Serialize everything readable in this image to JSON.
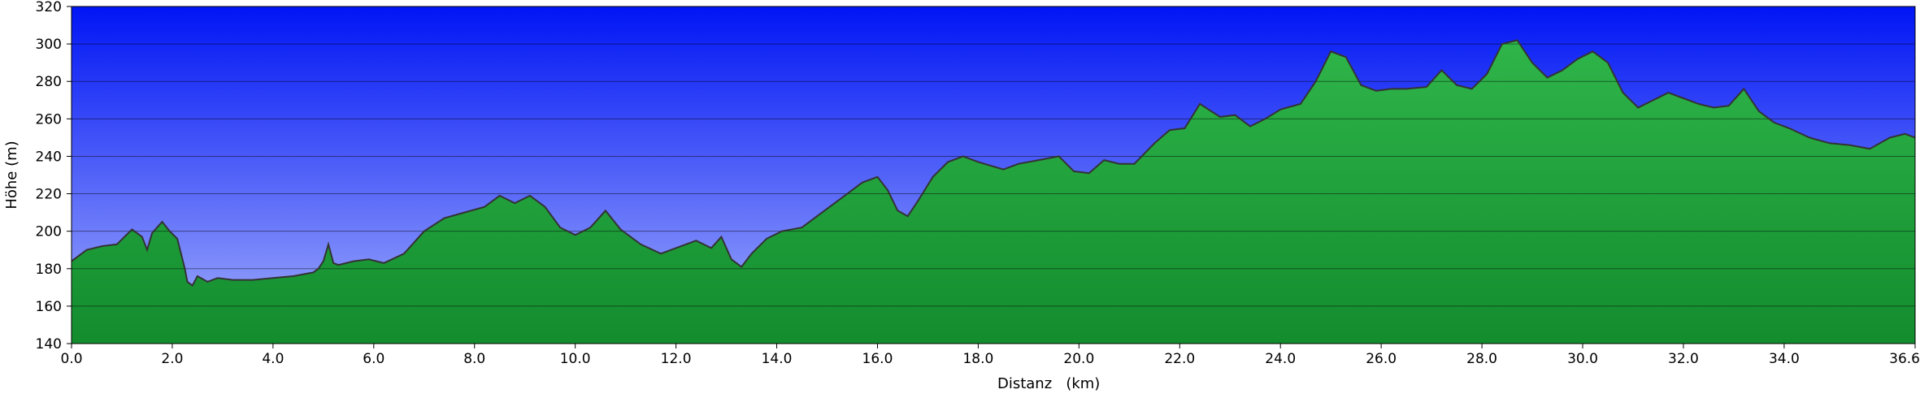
{
  "chart_data": {
    "type": "area",
    "xlabel": "Distanz   (km)",
    "ylabel": "Höhe (m)",
    "xlim": [
      0,
      36.6
    ],
    "ylim": [
      140,
      320
    ],
    "xticks": [
      0,
      2,
      4,
      6,
      8,
      10,
      12,
      14,
      16,
      18,
      20,
      22,
      24,
      26,
      28,
      30,
      32,
      34,
      36.6
    ],
    "xtick_labels": [
      "0.0",
      "2.0",
      "4.0",
      "6.0",
      "8.0",
      "10.0",
      "12.0",
      "14.0",
      "16.0",
      "18.0",
      "20.0",
      "22.0",
      "24.0",
      "26.0",
      "28.0",
      "30.0",
      "32.0",
      "34.0",
      "36.6"
    ],
    "yticks": [
      140,
      160,
      180,
      200,
      220,
      240,
      260,
      280,
      300,
      320
    ],
    "ytick_labels": [
      "140",
      "160",
      "180",
      "200",
      "220",
      "240",
      "260",
      "280",
      "300",
      "320"
    ],
    "grid": true,
    "colors": {
      "sky_top": "#0015f5",
      "sky_bottom": "#a4b0fc",
      "fill_top": "#2fb54a",
      "fill_bottom": "#138c2e",
      "line": "#333333",
      "grid": "#000000"
    },
    "series": [
      {
        "x": [
          0,
          0.3,
          0.6,
          0.9,
          1.2,
          1.4,
          1.5,
          1.6,
          1.8,
          1.95,
          2.1,
          2.25,
          2.3,
          2.4,
          2.5,
          2.7,
          2.9,
          3.2,
          3.6,
          4.0,
          4.4,
          4.8,
          4.9,
          5.0,
          5.1,
          5.2,
          5.3,
          5.6,
          5.9,
          6.2,
          6.6,
          7.0,
          7.4,
          7.8,
          8.2,
          8.5,
          8.8,
          9.1,
          9.4,
          9.7,
          10.0,
          10.3,
          10.6,
          10.9,
          11.3,
          11.7,
          12.1,
          12.4,
          12.7,
          12.9,
          13.1,
          13.3,
          13.5,
          13.8,
          14.1,
          14.5,
          14.9,
          15.3,
          15.7,
          16.0,
          16.2,
          16.4,
          16.6,
          16.8,
          17.1,
          17.4,
          17.7,
          18.0,
          18.5,
          18.8,
          19.2,
          19.6,
          19.9,
          20.2,
          20.5,
          20.8,
          21.1,
          21.5,
          21.8,
          22.1,
          22.4,
          22.8,
          23.1,
          23.4,
          23.7,
          24.0,
          24.4,
          24.7,
          25.0,
          25.3,
          25.6,
          25.9,
          26.2,
          26.5,
          26.9,
          27.2,
          27.5,
          27.8,
          28.1,
          28.4,
          28.7,
          29.0,
          29.3,
          29.6,
          29.9,
          30.2,
          30.5,
          30.8,
          31.1,
          31.4,
          31.7,
          32.0,
          32.3,
          32.6,
          32.9,
          33.2,
          33.5,
          33.8,
          34.1,
          34.5,
          34.9,
          35.3,
          35.7,
          36.1,
          36.4,
          36.6
        ],
        "values": [
          184,
          190,
          192,
          193,
          201,
          197,
          190,
          199,
          205,
          200,
          196,
          180,
          173,
          171,
          176,
          173,
          175,
          174,
          174,
          175,
          176,
          178,
          180,
          184,
          193,
          183,
          182,
          184,
          185,
          183,
          188,
          200,
          207,
          210,
          213,
          219,
          215,
          219,
          213,
          202,
          198,
          202,
          211,
          201,
          193,
          188,
          192,
          195,
          191,
          197,
          185,
          181,
          188,
          196,
          200,
          202,
          210,
          218,
          226,
          229,
          222,
          211,
          208,
          216,
          229,
          237,
          240,
          237,
          233,
          236,
          238,
          240,
          232,
          231,
          238,
          236,
          236,
          247,
          254,
          255,
          268,
          261,
          262,
          256,
          260,
          265,
          268,
          280,
          296,
          293,
          278,
          275,
          276,
          276,
          277,
          286,
          278,
          276,
          284,
          300,
          302,
          290,
          282,
          286,
          292,
          296,
          290,
          274,
          266,
          270,
          274,
          271,
          268,
          266,
          267,
          276,
          264,
          258,
          255,
          250,
          247,
          246,
          244,
          250,
          252,
          250
        ]
      }
    ]
  }
}
